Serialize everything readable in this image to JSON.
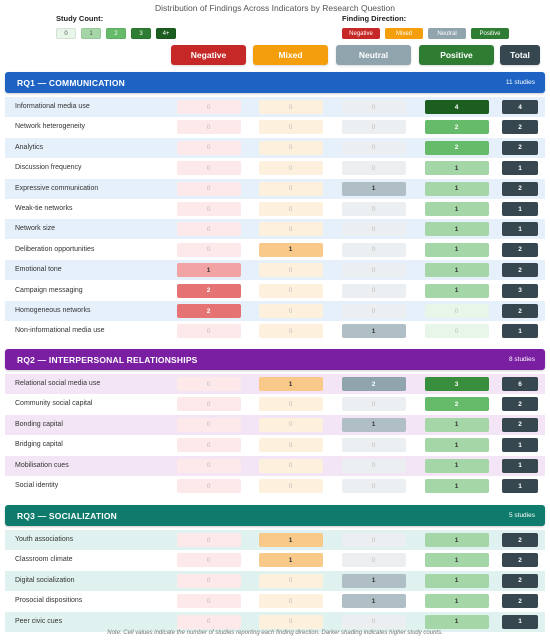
{
  "chart_data": {
    "type": "heatmap",
    "title": "Distribution of Findings Across Indicators by Research Question",
    "columns": [
      "Negative",
      "Mixed",
      "Neutral",
      "Positive",
      "Total"
    ],
    "legend": {
      "count_label": "Study Count:",
      "count_items": [
        "0",
        "1",
        "2",
        "3",
        "4+"
      ],
      "direction_label": "Finding Direction:",
      "direction_items": [
        "Negative",
        "Mixed",
        "Neutral",
        "Positive"
      ]
    },
    "sections": [
      {
        "title": "RQ1 — COMMUNICATION",
        "count_label": "11 studies",
        "color": "#1e63c4",
        "tint": "#e6f0fb",
        "rows": [
          {
            "label": "Informational media use",
            "values": [
              0,
              0,
              0,
              4,
              4
            ]
          },
          {
            "label": "Network heterogeneity",
            "values": [
              0,
              0,
              0,
              2,
              2
            ]
          },
          {
            "label": "Analytics",
            "values": [
              0,
              0,
              0,
              2,
              2
            ]
          },
          {
            "label": "Discussion frequency",
            "values": [
              0,
              0,
              0,
              1,
              1
            ]
          },
          {
            "label": "Expressive communication",
            "values": [
              0,
              0,
              1,
              1,
              2
            ]
          },
          {
            "label": "Weak-tie networks",
            "values": [
              0,
              0,
              0,
              1,
              1
            ]
          },
          {
            "label": "Network size",
            "values": [
              0,
              0,
              0,
              1,
              1
            ]
          },
          {
            "label": "Deliberation opportunities",
            "values": [
              0,
              1,
              0,
              1,
              2
            ]
          },
          {
            "label": "Emotional tone",
            "values": [
              1,
              0,
              0,
              1,
              2
            ]
          },
          {
            "label": "Campaign messaging",
            "values": [
              2,
              0,
              0,
              1,
              3
            ]
          },
          {
            "label": "Homogeneous networks",
            "values": [
              2,
              0,
              0,
              0,
              2
            ]
          },
          {
            "label": "Non-informational media use",
            "values": [
              0,
              0,
              1,
              0,
              1
            ]
          }
        ]
      },
      {
        "title": "RQ2 — INTERPERSONAL RELATIONSHIPS",
        "count_label": "8 studies",
        "color": "#7b1fa2",
        "tint": "#f3e5f5",
        "rows": [
          {
            "label": "Relational social media use",
            "values": [
              0,
              1,
              2,
              3,
              6
            ]
          },
          {
            "label": "Community social capital",
            "values": [
              0,
              0,
              0,
              2,
              2
            ]
          },
          {
            "label": "Bonding capital",
            "values": [
              0,
              0,
              1,
              1,
              2
            ]
          },
          {
            "label": "Bridging capital",
            "values": [
              0,
              0,
              0,
              1,
              1
            ]
          },
          {
            "label": "Mobilisation cues",
            "values": [
              0,
              0,
              0,
              1,
              1
            ]
          },
          {
            "label": "Social identity",
            "values": [
              0,
              0,
              0,
              1,
              1
            ]
          }
        ]
      },
      {
        "title": "RQ3 — SOCIALIZATION",
        "count_label": "5 studies",
        "color": "#0f7b6c",
        "tint": "#e0f2ef",
        "rows": [
          {
            "label": "Youth associations",
            "values": [
              0,
              1,
              0,
              1,
              2
            ]
          },
          {
            "label": "Classroom climate",
            "values": [
              0,
              1,
              0,
              1,
              2
            ]
          },
          {
            "label": "Digital socialization",
            "values": [
              0,
              0,
              1,
              1,
              2
            ]
          },
          {
            "label": "Prosocial dispositions",
            "values": [
              0,
              0,
              1,
              1,
              2
            ]
          },
          {
            "label": "Peer civic cues",
            "values": [
              0,
              0,
              0,
              1,
              1
            ]
          }
        ]
      }
    ],
    "note": "Note: Cell values indicate the number of studies reporting each finding direction. Darker shading indicates higher study counts."
  },
  "colors": {
    "negative": "#c62828",
    "mixed": "#f59e0b",
    "neutral": "#90a4ae",
    "positive": "#2e7d32",
    "total": "#37474f"
  }
}
